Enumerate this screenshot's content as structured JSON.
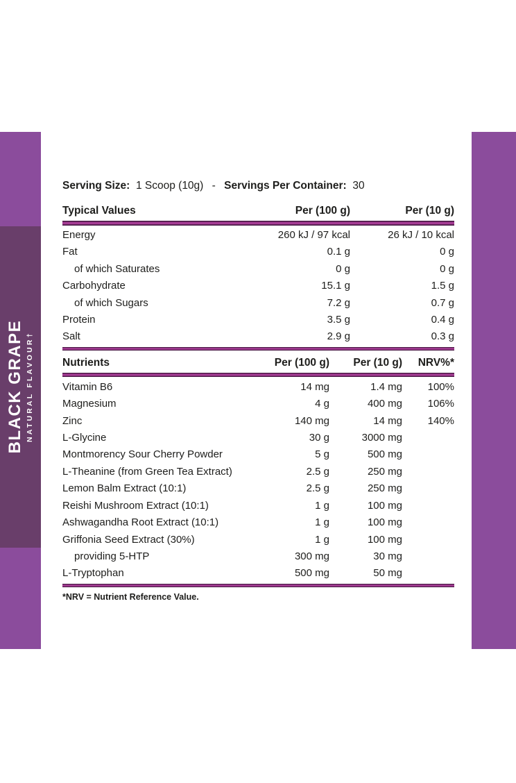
{
  "colors": {
    "light_purple": "#8b4c9c",
    "dark_purple": "#693e6a",
    "rule_bright": "#a73d96",
    "rule_dark": "#4c1b47",
    "text": "#1d1d1b"
  },
  "sidebar": {
    "flavor": "BLACK GRAPE",
    "subtitle": "NATURAL FLAVOUR†"
  },
  "serving_line": {
    "size_label": "Serving Size:",
    "size_value": "1 Scoop (10g)",
    "separator": "-",
    "container_label": "Servings Per Container:",
    "container_value": "30"
  },
  "typical_values": {
    "title": "Typical Values",
    "col_per_100g": "Per (100 g)",
    "col_per_10g": "Per (10 g)",
    "rows": [
      {
        "label": "Energy",
        "per_100g": "260 kJ / 97 kcal",
        "per_10g": "26 kJ / 10 kcal",
        "indent": false
      },
      {
        "label": "Fat",
        "per_100g": "0.1 g",
        "per_10g": "0 g",
        "indent": false
      },
      {
        "label": "of which Saturates",
        "per_100g": "0 g",
        "per_10g": "0 g",
        "indent": true
      },
      {
        "label": "Carbohydrate",
        "per_100g": "15.1 g",
        "per_10g": "1.5 g",
        "indent": false
      },
      {
        "label": "of which Sugars",
        "per_100g": "7.2 g",
        "per_10g": "0.7 g",
        "indent": true
      },
      {
        "label": "Protein",
        "per_100g": "3.5 g",
        "per_10g": "0.4 g",
        "indent": false
      },
      {
        "label": "Salt",
        "per_100g": "2.9 g",
        "per_10g": "0.3 g",
        "indent": false
      }
    ]
  },
  "nutrients": {
    "title": "Nutrients",
    "col_per_100g": "Per (100 g)",
    "col_per_10g": "Per (10 g)",
    "col_nrv": "NRV%*",
    "rows": [
      {
        "label": "Vitamin B6",
        "per_100g": "14 mg",
        "per_10g": "1.4 mg",
        "nrv": "100%",
        "indent": false
      },
      {
        "label": "Magnesium",
        "per_100g": "4 g",
        "per_10g": "400 mg",
        "nrv": "106%",
        "indent": false
      },
      {
        "label": "Zinc",
        "per_100g": "140 mg",
        "per_10g": "14 mg",
        "nrv": "140%",
        "indent": false
      },
      {
        "label": "L-Glycine",
        "per_100g": "30 g",
        "per_10g": "3000 mg",
        "nrv": "",
        "indent": false
      },
      {
        "label": "Montmorency Sour Cherry Powder",
        "per_100g": "5 g",
        "per_10g": "500 mg",
        "nrv": "",
        "indent": false
      },
      {
        "label": "L-Theanine (from Green Tea Extract)",
        "per_100g": "2.5 g",
        "per_10g": "250 mg",
        "nrv": "",
        "indent": false
      },
      {
        "label": "Lemon Balm Extract (10:1)",
        "per_100g": "2.5 g",
        "per_10g": "250 mg",
        "nrv": "",
        "indent": false
      },
      {
        "label": "Reishi Mushroom Extract (10:1)",
        "per_100g": "1 g",
        "per_10g": "100 mg",
        "nrv": "",
        "indent": false
      },
      {
        "label": "Ashwagandha Root Extract (10:1)",
        "per_100g": "1 g",
        "per_10g": "100 mg",
        "nrv": "",
        "indent": false
      },
      {
        "label": "Griffonia Seed Extract (30%)",
        "per_100g": "1 g",
        "per_10g": "100 mg",
        "nrv": "",
        "indent": false
      },
      {
        "label": "providing 5-HTP",
        "per_100g": "300 mg",
        "per_10g": "30 mg",
        "nrv": "",
        "indent": true
      },
      {
        "label": "L-Tryptophan",
        "per_100g": "500 mg",
        "per_10g": "50 mg",
        "nrv": "",
        "indent": false
      }
    ]
  },
  "footnote": "*NRV = Nutrient Reference Value."
}
